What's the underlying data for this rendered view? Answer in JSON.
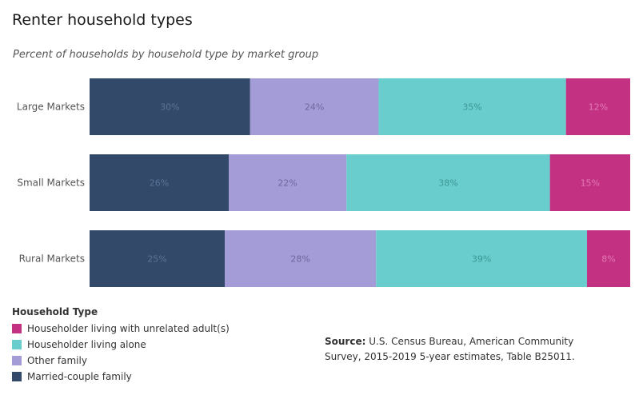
{
  "title": "Renter household types",
  "subtitle": "Percent of households by household type by market group",
  "chart_data": {
    "type": "bar",
    "orientation": "horizontal",
    "stacked": true,
    "normalized": true,
    "categories": [
      "Large Markets",
      "Small Markets",
      "Rural Markets"
    ],
    "series": [
      {
        "name": "Married-couple family",
        "values": [
          30,
          26,
          25
        ],
        "color": "#33496a",
        "label_color": "#5a7496"
      },
      {
        "name": "Other family",
        "values": [
          24,
          22,
          28
        ],
        "color": "#a39cd6",
        "label_color": "#6f689e"
      },
      {
        "name": "Householder living alone",
        "values": [
          35,
          38,
          39
        ],
        "color": "#68cdcc",
        "label_color": "#3d9896"
      },
      {
        "name": "Householder living with unrelated adult(s)",
        "values": [
          12,
          15,
          8
        ],
        "color": "#c23182",
        "label_color": "#e27ab3"
      }
    ],
    "value_suffix": "%",
    "legend_placement": "bottom-left"
  },
  "legend": {
    "title": "Household Type",
    "items": [
      {
        "label": "Householder living with unrelated adult(s)",
        "color": "#c23182"
      },
      {
        "label": "Householder living alone",
        "color": "#68cdcc"
      },
      {
        "label": "Other family",
        "color": "#a39cd6"
      },
      {
        "label": "Married-couple family",
        "color": "#33496a"
      }
    ]
  },
  "source": {
    "label": "Source:",
    "text": "U.S. Census Bureau, American Community Survey, 2015-2019 5-year estimates, Table B25011."
  }
}
